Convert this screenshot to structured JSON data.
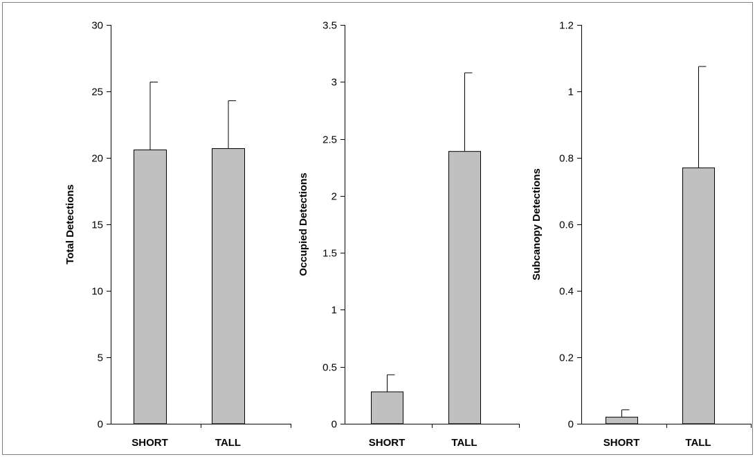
{
  "colors": {
    "bar_fill": "#c0c0c0",
    "bar_stroke": "#000000",
    "axis": "#000000",
    "frame": "#808080"
  },
  "chart_data": [
    {
      "type": "bar",
      "title": "",
      "xlabel": "",
      "ylabel": "Total Detections",
      "categories": [
        "SHORT",
        "TALL"
      ],
      "values": [
        20.6,
        20.7
      ],
      "error_plus": [
        5.1,
        3.6
      ],
      "ylim": [
        0,
        30
      ],
      "yticks": [
        0,
        5,
        10,
        15,
        20,
        25,
        30
      ],
      "ytick_labels": [
        "0",
        "5",
        "10",
        "15",
        "20",
        "25",
        "30"
      ],
      "grid": false
    },
    {
      "type": "bar",
      "title": "",
      "xlabel": "",
      "ylabel": "Occupied Detections",
      "categories": [
        "SHORT",
        "TALL"
      ],
      "values": [
        0.28,
        2.39
      ],
      "error_plus": [
        0.15,
        0.69
      ],
      "ylim": [
        0,
        3.5
      ],
      "yticks": [
        0,
        0.5,
        1,
        1.5,
        2,
        2.5,
        3,
        3.5
      ],
      "ytick_labels": [
        "0",
        "0.5",
        "1",
        "1.5",
        "2",
        "2.5",
        "3",
        "3.5"
      ],
      "grid": false
    },
    {
      "type": "bar",
      "title": "",
      "xlabel": "",
      "ylabel": "Subcanopy Detections",
      "categories": [
        "SHORT",
        "TALL"
      ],
      "values": [
        0.02,
        0.77
      ],
      "error_plus": [
        0.022,
        0.305
      ],
      "ylim": [
        0,
        1.2
      ],
      "yticks": [
        0,
        0.2,
        0.4,
        0.6,
        0.8,
        1,
        1.2
      ],
      "ytick_labels": [
        "0",
        "0.2",
        "0.4",
        "0.6",
        "0.8",
        "1",
        "1.2"
      ],
      "grid": false
    }
  ]
}
